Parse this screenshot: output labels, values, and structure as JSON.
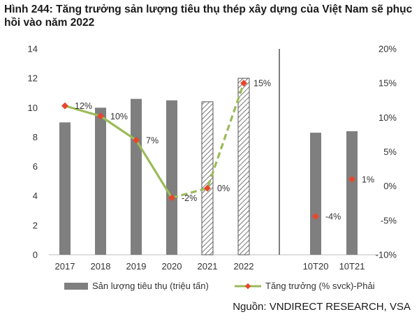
{
  "title": "Hình 244: Tăng trưởng sản lượng tiêu thụ thép xây dựng của Việt Nam sẽ phục hồi vào năm 2022",
  "source": "Nguồn: VNDIRECT RESEARCH, VSA",
  "colors": {
    "bar": "#7f7f7f",
    "line": "#9bbb59",
    "marker": "#e8462a",
    "axis": "#bfbfbf",
    "divider": "#555555"
  },
  "chart_data": {
    "type": "bar+line",
    "categories": [
      "2017",
      "2018",
      "2019",
      "2020",
      "2021",
      "2022",
      "10T20",
      "10T21"
    ],
    "left_axis": {
      "ylim": [
        0,
        14
      ],
      "ticks": [
        "0",
        "2",
        "4",
        "6",
        "8",
        "10",
        "12",
        "14"
      ]
    },
    "right_axis": {
      "ylim": [
        -10,
        20
      ],
      "ticks": [
        "-10%",
        "-5%",
        "0%",
        "5%",
        "10%",
        "15%",
        "20%"
      ]
    },
    "series": [
      {
        "name": "Sản lượng tiêu thụ (triệu tấn)",
        "type": "bar",
        "axis": "left",
        "values": [
          9.0,
          10.0,
          10.6,
          10.5,
          10.4,
          12.0,
          8.3,
          8.4
        ],
        "forecast": [
          false,
          false,
          false,
          false,
          true,
          true,
          false,
          false
        ]
      },
      {
        "name": "Tăng trưởng (% svck)-Phải",
        "type": "line",
        "axis": "right",
        "values": [
          11.7,
          10.2,
          6.7,
          -1.7,
          -0.3,
          15.0,
          -4.4,
          1.0
        ],
        "labels": [
          "12%",
          "10%",
          "7%",
          "-2%",
          "0%",
          "15%",
          "-4%",
          "1%"
        ],
        "connected": [
          true,
          true,
          true,
          true,
          true,
          true,
          false,
          false
        ],
        "forecast_from_index": 3
      }
    ],
    "legend": [
      "Sản lượng tiêu thụ (triệu tấn)",
      "Tăng trưởng (% svck)-Phải"
    ],
    "legend_position": "bottom"
  }
}
